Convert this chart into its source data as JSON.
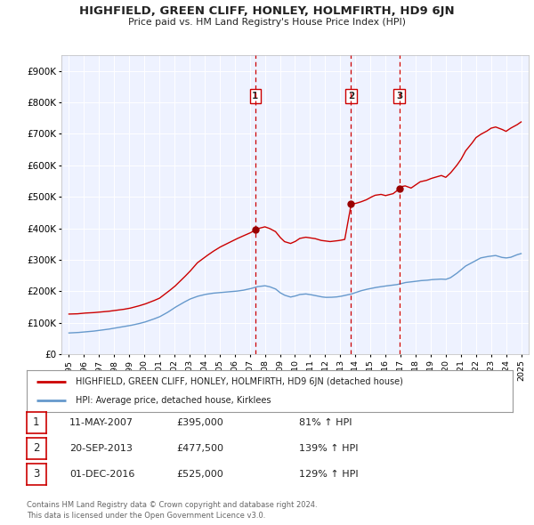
{
  "title": "HIGHFIELD, GREEN CLIFF, HONLEY, HOLMFIRTH, HD9 6JN",
  "subtitle": "Price paid vs. HM Land Registry's House Price Index (HPI)",
  "legend_label_red": "HIGHFIELD, GREEN CLIFF, HONLEY, HOLMFIRTH, HD9 6JN (detached house)",
  "legend_label_blue": "HPI: Average price, detached house, Kirklees",
  "footer1": "Contains HM Land Registry data © Crown copyright and database right 2024.",
  "footer2": "This data is licensed under the Open Government Licence v3.0.",
  "sale_points": [
    {
      "num": 1,
      "date_str": "11-MAY-2007",
      "date_x": 2007.36,
      "price": 395000,
      "hpi_str": "81% ↑ HPI"
    },
    {
      "num": 2,
      "date_str": "20-SEP-2013",
      "date_x": 2013.72,
      "price": 477500,
      "hpi_str": "139% ↑ HPI"
    },
    {
      "num": 3,
      "date_str": "01-DEC-2016",
      "date_x": 2016.92,
      "price": 525000,
      "hpi_str": "129% ↑ HPI"
    }
  ],
  "xlim": [
    1994.5,
    2025.5
  ],
  "ylim": [
    0,
    950000
  ],
  "yticks": [
    0,
    100000,
    200000,
    300000,
    400000,
    500000,
    600000,
    700000,
    800000,
    900000
  ],
  "ytick_labels": [
    "£0",
    "£100K",
    "£200K",
    "£300K",
    "£400K",
    "£500K",
    "£600K",
    "£700K",
    "£800K",
    "£900K"
  ],
  "xticks": [
    1995,
    1996,
    1997,
    1998,
    1999,
    2000,
    2001,
    2002,
    2003,
    2004,
    2005,
    2006,
    2007,
    2008,
    2009,
    2010,
    2011,
    2012,
    2013,
    2014,
    2015,
    2016,
    2017,
    2018,
    2019,
    2020,
    2021,
    2022,
    2023,
    2024,
    2025
  ],
  "red_color": "#cc0000",
  "blue_color": "#6699cc",
  "dot_color": "#990000",
  "bg_plot": "#eef2ff",
  "bg_fig": "#ffffff",
  "grid_color": "#ffffff",
  "red_segments": [
    [
      1995.0,
      128000
    ],
    [
      1995.5,
      128500
    ],
    [
      1996.0,
      131000
    ],
    [
      1996.5,
      132000
    ],
    [
      1997.0,
      134000
    ],
    [
      1997.5,
      136000
    ],
    [
      1998.0,
      139000
    ],
    [
      1998.5,
      142000
    ],
    [
      1999.0,
      146000
    ],
    [
      1999.5,
      152000
    ],
    [
      2000.0,
      159000
    ],
    [
      2000.5,
      168000
    ],
    [
      2001.0,
      178000
    ],
    [
      2001.5,
      196000
    ],
    [
      2002.0,
      215000
    ],
    [
      2002.5,
      238000
    ],
    [
      2003.0,
      262000
    ],
    [
      2003.5,
      290000
    ],
    [
      2004.0,
      308000
    ],
    [
      2004.5,
      325000
    ],
    [
      2005.0,
      340000
    ],
    [
      2005.5,
      352000
    ],
    [
      2006.0,
      364000
    ],
    [
      2006.5,
      375000
    ],
    [
      2007.0,
      385000
    ],
    [
      2007.36,
      395000
    ],
    [
      2007.6,
      400000
    ],
    [
      2008.0,
      405000
    ],
    [
      2008.3,
      400000
    ],
    [
      2008.7,
      390000
    ],
    [
      2009.0,
      372000
    ],
    [
      2009.3,
      358000
    ],
    [
      2009.7,
      352000
    ],
    [
      2010.0,
      358000
    ],
    [
      2010.3,
      368000
    ],
    [
      2010.7,
      372000
    ],
    [
      2011.0,
      370000
    ],
    [
      2011.3,
      368000
    ],
    [
      2011.7,
      362000
    ],
    [
      2012.0,
      360000
    ],
    [
      2012.3,
      358000
    ],
    [
      2012.7,
      360000
    ],
    [
      2013.0,
      362000
    ],
    [
      2013.3,
      365000
    ],
    [
      2013.72,
      477500
    ],
    [
      2014.0,
      479000
    ],
    [
      2014.3,
      483000
    ],
    [
      2014.7,
      490000
    ],
    [
      2015.0,
      498000
    ],
    [
      2015.3,
      505000
    ],
    [
      2015.7,
      508000
    ],
    [
      2016.0,
      504000
    ],
    [
      2016.5,
      510000
    ],
    [
      2016.92,
      525000
    ],
    [
      2017.0,
      532000
    ],
    [
      2017.3,
      535000
    ],
    [
      2017.7,
      528000
    ],
    [
      2018.0,
      538000
    ],
    [
      2018.3,
      548000
    ],
    [
      2018.7,
      552000
    ],
    [
      2019.0,
      558000
    ],
    [
      2019.3,
      562000
    ],
    [
      2019.7,
      568000
    ],
    [
      2020.0,
      562000
    ],
    [
      2020.3,
      575000
    ],
    [
      2020.7,
      598000
    ],
    [
      2021.0,
      618000
    ],
    [
      2021.3,
      645000
    ],
    [
      2021.7,
      668000
    ],
    [
      2022.0,
      688000
    ],
    [
      2022.3,
      698000
    ],
    [
      2022.7,
      708000
    ],
    [
      2023.0,
      718000
    ],
    [
      2023.3,
      722000
    ],
    [
      2023.7,
      715000
    ],
    [
      2024.0,
      708000
    ],
    [
      2024.3,
      718000
    ],
    [
      2024.7,
      728000
    ],
    [
      2025.0,
      738000
    ]
  ],
  "blue_segments": [
    [
      1995.0,
      68000
    ],
    [
      1995.5,
      69000
    ],
    [
      1996.0,
      71000
    ],
    [
      1996.5,
      73000
    ],
    [
      1997.0,
      76000
    ],
    [
      1997.5,
      79000
    ],
    [
      1998.0,
      83000
    ],
    [
      1998.5,
      87000
    ],
    [
      1999.0,
      91000
    ],
    [
      1999.5,
      96000
    ],
    [
      2000.0,
      102000
    ],
    [
      2000.5,
      110000
    ],
    [
      2001.0,
      119000
    ],
    [
      2001.5,
      132000
    ],
    [
      2002.0,
      148000
    ],
    [
      2002.5,
      162000
    ],
    [
      2003.0,
      175000
    ],
    [
      2003.5,
      184000
    ],
    [
      2004.0,
      190000
    ],
    [
      2004.5,
      194000
    ],
    [
      2005.0,
      196000
    ],
    [
      2005.5,
      198000
    ],
    [
      2006.0,
      200000
    ],
    [
      2006.5,
      203000
    ],
    [
      2007.0,
      208000
    ],
    [
      2007.5,
      215000
    ],
    [
      2008.0,
      218000
    ],
    [
      2008.3,
      215000
    ],
    [
      2008.7,
      208000
    ],
    [
      2009.0,
      196000
    ],
    [
      2009.3,
      188000
    ],
    [
      2009.7,
      182000
    ],
    [
      2010.0,
      185000
    ],
    [
      2010.3,
      190000
    ],
    [
      2010.7,
      192000
    ],
    [
      2011.0,
      190000
    ],
    [
      2011.3,
      187000
    ],
    [
      2011.7,
      183000
    ],
    [
      2012.0,
      181000
    ],
    [
      2012.3,
      181000
    ],
    [
      2012.7,
      182000
    ],
    [
      2013.0,
      184000
    ],
    [
      2013.3,
      187000
    ],
    [
      2013.7,
      191000
    ],
    [
      2014.0,
      196000
    ],
    [
      2014.3,
      201000
    ],
    [
      2014.7,
      206000
    ],
    [
      2015.0,
      209000
    ],
    [
      2015.3,
      212000
    ],
    [
      2015.7,
      215000
    ],
    [
      2016.0,
      217000
    ],
    [
      2016.3,
      219000
    ],
    [
      2016.7,
      221000
    ],
    [
      2017.0,
      224000
    ],
    [
      2017.3,
      228000
    ],
    [
      2017.7,
      230000
    ],
    [
      2018.0,
      232000
    ],
    [
      2018.3,
      234000
    ],
    [
      2018.7,
      235000
    ],
    [
      2019.0,
      237000
    ],
    [
      2019.3,
      238000
    ],
    [
      2019.7,
      239000
    ],
    [
      2020.0,
      238000
    ],
    [
      2020.3,
      243000
    ],
    [
      2020.7,
      256000
    ],
    [
      2021.0,
      268000
    ],
    [
      2021.3,
      280000
    ],
    [
      2021.7,
      290000
    ],
    [
      2022.0,
      298000
    ],
    [
      2022.3,
      306000
    ],
    [
      2022.7,
      310000
    ],
    [
      2023.0,
      312000
    ],
    [
      2023.3,
      314000
    ],
    [
      2023.7,
      308000
    ],
    [
      2024.0,
      306000
    ],
    [
      2024.3,
      308000
    ],
    [
      2024.7,
      316000
    ],
    [
      2025.0,
      320000
    ]
  ]
}
